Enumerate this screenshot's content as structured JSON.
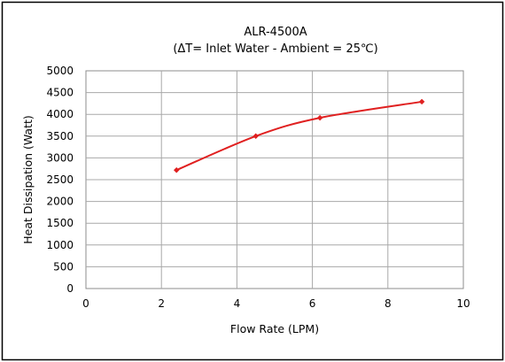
{
  "chart_data": {
    "type": "line",
    "title": "ALR-4500A",
    "subtitle": "(ΔT= Inlet Water - Ambient = 25℃)",
    "xlabel": "Flow Rate (LPM)",
    "ylabel": "Heat Dissipation (Watt)",
    "xlim": [
      0,
      10
    ],
    "ylim": [
      0,
      5000
    ],
    "xticks": [
      0,
      2,
      4,
      6,
      8,
      10
    ],
    "yticks": [
      0,
      500,
      1000,
      1500,
      2000,
      2500,
      3000,
      3500,
      4000,
      4500,
      5000
    ],
    "grid": true,
    "series": [
      {
        "color": "#e02020",
        "x": [
          2.4,
          4.5,
          6.2,
          8.9
        ],
        "y": [
          2720,
          3500,
          3920,
          4290
        ]
      }
    ]
  }
}
